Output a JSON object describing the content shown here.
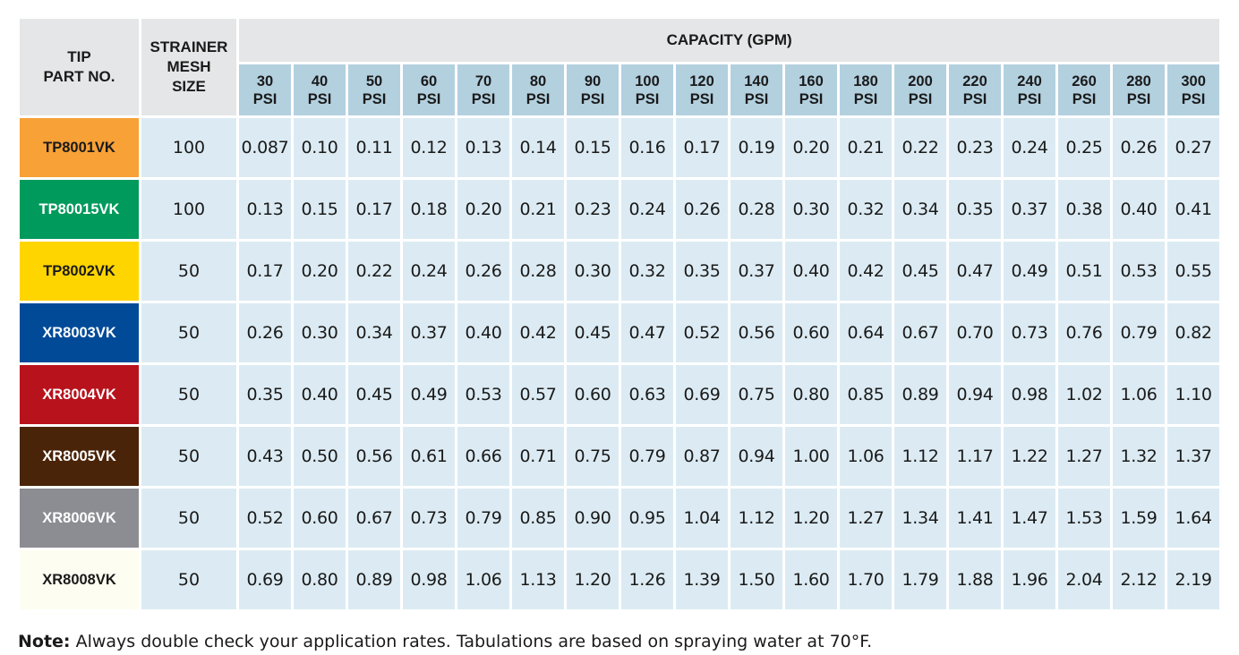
{
  "headers": {
    "tip_part_no": "TIP\nPART NO.",
    "strainer_mesh_size": "STRAINER\nMESH\nSIZE",
    "capacity": "CAPACITY (GPM)",
    "psi_columns": [
      [
        "30",
        "PSI"
      ],
      [
        "40",
        "PSI"
      ],
      [
        "50",
        "PSI"
      ],
      [
        "60",
        "PSI"
      ],
      [
        "70",
        "PSI"
      ],
      [
        "80",
        "PSI"
      ],
      [
        "90",
        "PSI"
      ],
      [
        "100",
        "PSI"
      ],
      [
        "120",
        "PSI"
      ],
      [
        "140",
        "PSI"
      ],
      [
        "160",
        "PSI"
      ],
      [
        "180",
        "PSI"
      ],
      [
        "200",
        "PSI"
      ],
      [
        "220",
        "PSI"
      ],
      [
        "240",
        "PSI"
      ],
      [
        "260",
        "PSI"
      ],
      [
        "280",
        "PSI"
      ],
      [
        "300",
        "PSI"
      ]
    ]
  },
  "rows": [
    {
      "part": "TP8001VK",
      "bg": "#f7a136",
      "fg": "#1a1a1a",
      "mesh": "100",
      "values": [
        "0.087",
        "0.10",
        "0.11",
        "0.12",
        "0.13",
        "0.14",
        "0.15",
        "0.16",
        "0.17",
        "0.19",
        "0.20",
        "0.21",
        "0.22",
        "0.23",
        "0.24",
        "0.25",
        "0.26",
        "0.27"
      ]
    },
    {
      "part": "TP80015VK",
      "bg": "#009a5c",
      "fg": "#ffffff",
      "mesh": "100",
      "values": [
        "0.13",
        "0.15",
        "0.17",
        "0.18",
        "0.20",
        "0.21",
        "0.23",
        "0.24",
        "0.26",
        "0.28",
        "0.30",
        "0.32",
        "0.34",
        "0.35",
        "0.37",
        "0.38",
        "0.40",
        "0.41"
      ]
    },
    {
      "part": "TP8002VK",
      "bg": "#ffd500",
      "fg": "#1a1a1a",
      "mesh": "50",
      "values": [
        "0.17",
        "0.20",
        "0.22",
        "0.24",
        "0.26",
        "0.28",
        "0.30",
        "0.32",
        "0.35",
        "0.37",
        "0.40",
        "0.42",
        "0.45",
        "0.47",
        "0.49",
        "0.51",
        "0.53",
        "0.55"
      ]
    },
    {
      "part": "XR8003VK",
      "bg": "#004a98",
      "fg": "#ffffff",
      "mesh": "50",
      "values": [
        "0.26",
        "0.30",
        "0.34",
        "0.37",
        "0.40",
        "0.42",
        "0.45",
        "0.47",
        "0.52",
        "0.56",
        "0.60",
        "0.64",
        "0.67",
        "0.70",
        "0.73",
        "0.76",
        "0.79",
        "0.82"
      ]
    },
    {
      "part": "XR8004VK",
      "bg": "#b8121c",
      "fg": "#ffffff",
      "mesh": "50",
      "values": [
        "0.35",
        "0.40",
        "0.45",
        "0.49",
        "0.53",
        "0.57",
        "0.60",
        "0.63",
        "0.69",
        "0.75",
        "0.80",
        "0.85",
        "0.89",
        "0.94",
        "0.98",
        "1.02",
        "1.06",
        "1.10"
      ]
    },
    {
      "part": "XR8005VK",
      "bg": "#4a2408",
      "fg": "#ffffff",
      "mesh": "50",
      "values": [
        "0.43",
        "0.50",
        "0.56",
        "0.61",
        "0.66",
        "0.71",
        "0.75",
        "0.79",
        "0.87",
        "0.94",
        "1.00",
        "1.06",
        "1.12",
        "1.17",
        "1.22",
        "1.27",
        "1.32",
        "1.37"
      ]
    },
    {
      "part": "XR8006VK",
      "bg": "#8b8d93",
      "fg": "#ffffff",
      "mesh": "50",
      "values": [
        "0.52",
        "0.60",
        "0.67",
        "0.73",
        "0.79",
        "0.85",
        "0.90",
        "0.95",
        "1.04",
        "1.12",
        "1.20",
        "1.27",
        "1.34",
        "1.41",
        "1.47",
        "1.53",
        "1.59",
        "1.64"
      ]
    },
    {
      "part": "XR8008VK",
      "bg": "#fdfdf1",
      "fg": "#1a1a1a",
      "mesh": "50",
      "values": [
        "0.69",
        "0.80",
        "0.89",
        "0.98",
        "1.06",
        "1.13",
        "1.20",
        "1.26",
        "1.39",
        "1.50",
        "1.60",
        "1.70",
        "1.79",
        "1.88",
        "1.96",
        "2.04",
        "2.12",
        "2.19"
      ]
    }
  ],
  "note": {
    "label": "Note:",
    "text": " Always double check your application rates. Tabulations are based on spraying water at 70°F."
  }
}
